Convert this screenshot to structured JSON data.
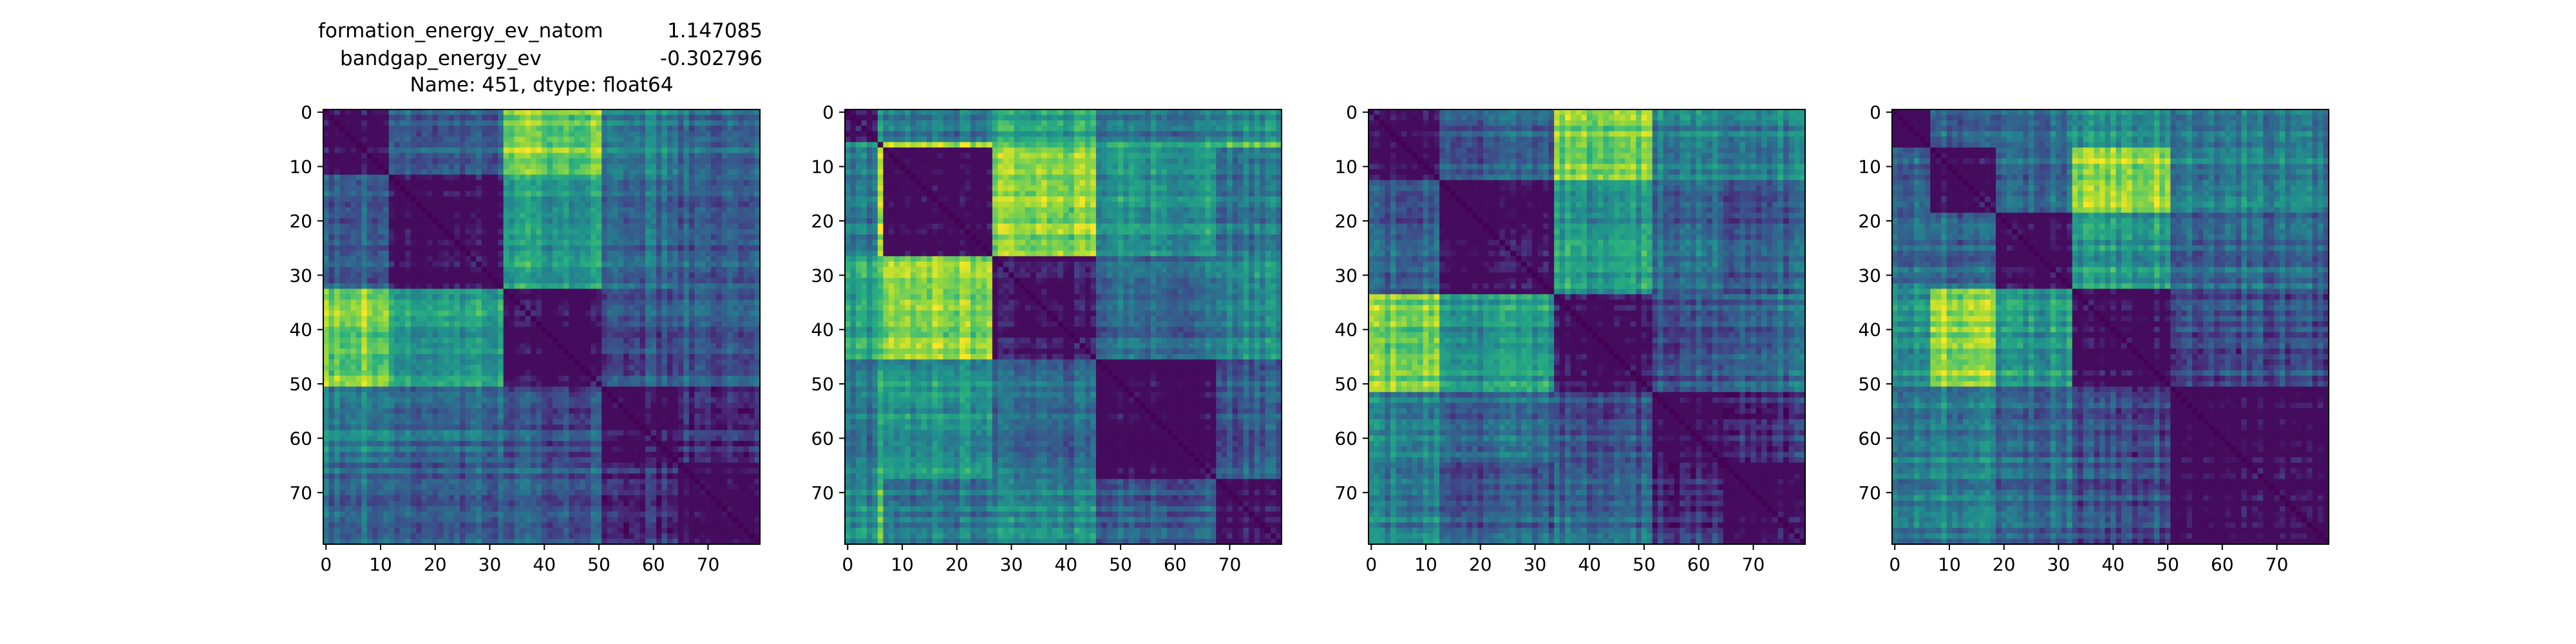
{
  "chart_data": [
    {
      "type": "heatmap",
      "title_lines": [
        {
          "key": "formation_energy_ev_natom",
          "value": "1.147085"
        },
        {
          "key": "bandgap_energy_ev",
          "value": "-0.302796"
        },
        {
          "text": "Name: 451, dtype: float64"
        }
      ],
      "xlabel": "",
      "ylabel": "",
      "xlim": [
        0,
        80
      ],
      "ylim": [
        0,
        80
      ],
      "y_inverted": true,
      "grid": false,
      "colormap": "viridis",
      "x_ticks": [
        0,
        10,
        20,
        30,
        40,
        50,
        60,
        70
      ],
      "y_ticks": [
        0,
        10,
        20,
        30,
        40,
        50,
        60,
        70
      ],
      "size": 80,
      "blocks": [
        0,
        12,
        33,
        51,
        65,
        80
      ],
      "block_values": [
        [
          0.0,
          0.3,
          0.8,
          0.45,
          0.35
        ],
        [
          0.3,
          0.0,
          0.55,
          0.35,
          0.3
        ],
        [
          0.8,
          0.55,
          0.0,
          0.25,
          0.3
        ],
        [
          0.45,
          0.35,
          0.25,
          0.0,
          0.15
        ],
        [
          0.35,
          0.3,
          0.3,
          0.15,
          0.0
        ]
      ]
    },
    {
      "type": "heatmap",
      "xlabel": "",
      "ylabel": "",
      "xlim": [
        0,
        80
      ],
      "ylim": [
        0,
        80
      ],
      "y_inverted": true,
      "grid": false,
      "colormap": "viridis",
      "x_ticks": [
        0,
        10,
        20,
        30,
        40,
        50,
        60,
        70
      ],
      "y_ticks": [
        0,
        10,
        20,
        30,
        40,
        50,
        60,
        70
      ],
      "size": 80,
      "blocks": [
        0,
        6,
        7,
        27,
        46,
        68,
        80
      ],
      "block_values": [
        [
          0.0,
          0.55,
          0.4,
          0.55,
          0.4,
          0.45
        ],
        [
          0.55,
          0.0,
          0.9,
          0.7,
          0.65,
          0.75
        ],
        [
          0.4,
          0.9,
          0.0,
          0.82,
          0.55,
          0.4
        ],
        [
          0.55,
          0.7,
          0.82,
          0.0,
          0.35,
          0.45
        ],
        [
          0.4,
          0.65,
          0.55,
          0.35,
          0.0,
          0.3
        ],
        [
          0.45,
          0.75,
          0.4,
          0.45,
          0.3,
          0.0
        ]
      ]
    },
    {
      "type": "heatmap",
      "xlabel": "",
      "ylabel": "",
      "xlim": [
        0,
        80
      ],
      "ylim": [
        0,
        80
      ],
      "y_inverted": true,
      "grid": false,
      "colormap": "viridis",
      "x_ticks": [
        0,
        10,
        20,
        30,
        40,
        50,
        60,
        70
      ],
      "y_ticks": [
        0,
        10,
        20,
        30,
        40,
        50,
        60,
        70
      ],
      "size": 80,
      "blocks": [
        0,
        13,
        34,
        52,
        65,
        80
      ],
      "block_values": [
        [
          0.0,
          0.3,
          0.8,
          0.45,
          0.45
        ],
        [
          0.3,
          0.0,
          0.55,
          0.35,
          0.3
        ],
        [
          0.8,
          0.55,
          0.0,
          0.25,
          0.35
        ],
        [
          0.45,
          0.35,
          0.25,
          0.0,
          0.15
        ],
        [
          0.45,
          0.3,
          0.35,
          0.15,
          0.0
        ]
      ]
    },
    {
      "type": "heatmap",
      "xlabel": "",
      "ylabel": "",
      "xlim": [
        0,
        80
      ],
      "ylim": [
        0,
        80
      ],
      "y_inverted": true,
      "grid": false,
      "colormap": "viridis",
      "x_ticks": [
        0,
        10,
        20,
        30,
        40,
        50,
        60,
        70
      ],
      "y_ticks": [
        0,
        10,
        20,
        30,
        40,
        50,
        60,
        70
      ],
      "size": 80,
      "blocks": [
        0,
        7,
        19,
        33,
        51,
        80
      ],
      "block_values": [
        [
          0.0,
          0.35,
          0.4,
          0.55,
          0.45
        ],
        [
          0.35,
          0.0,
          0.35,
          0.85,
          0.45
        ],
        [
          0.4,
          0.35,
          0.0,
          0.55,
          0.35
        ],
        [
          0.55,
          0.85,
          0.55,
          0.0,
          0.25
        ],
        [
          0.45,
          0.45,
          0.35,
          0.25,
          0.0
        ]
      ]
    }
  ]
}
